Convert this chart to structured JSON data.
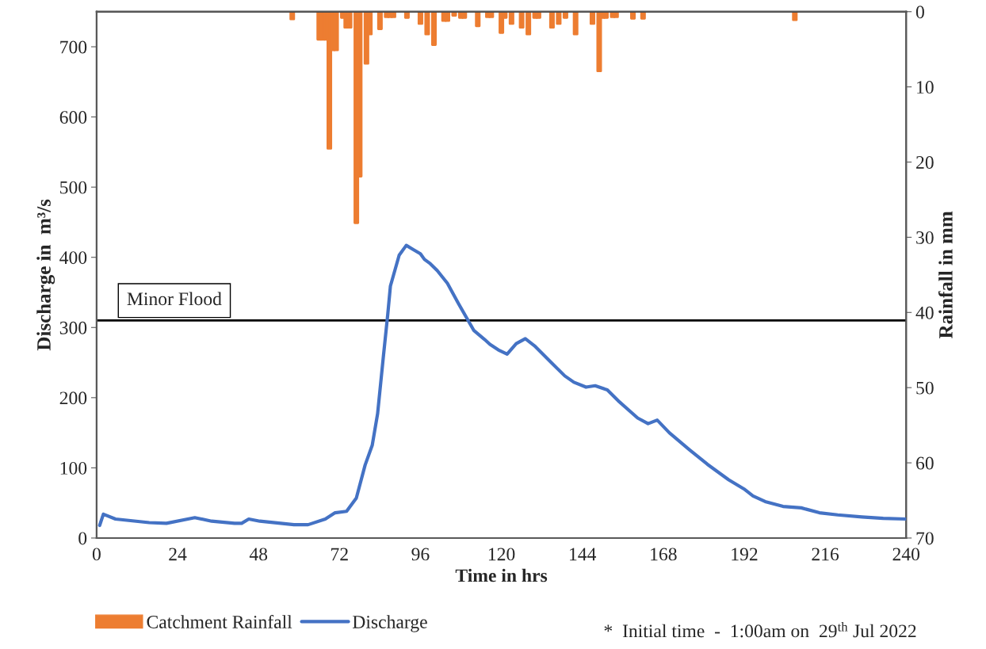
{
  "chart_data": {
    "type": "line",
    "xlabel": "Time in hrs",
    "ylabel": "Discharge in  m³/s",
    "y2label": "Rainfall in mm",
    "xlim": [
      0,
      240
    ],
    "xticks": [
      0,
      24,
      48,
      72,
      96,
      120,
      144,
      168,
      192,
      216,
      240
    ],
    "ylim": [
      0,
      750
    ],
    "yticks": [
      0,
      100,
      200,
      300,
      400,
      500,
      600,
      700
    ],
    "y2lim": [
      70,
      0
    ],
    "y2ticks": [
      0,
      10,
      20,
      30,
      40,
      50,
      60,
      70
    ],
    "grid": false,
    "legend": "bottom",
    "marker": "none",
    "line_style": "solid",
    "ref_lines": [
      {
        "axis": "y",
        "value": 310,
        "label": "Minor Flood",
        "color": "#000000"
      }
    ],
    "annotations": [
      "*  Initial time  -  1:00am on  29$^{th}$ Jul 2022"
    ],
    "series": [
      {
        "name": "Catchment Rainfall",
        "type": "bar",
        "axis": "y2",
        "color": "#ed7d31",
        "x": [
          58,
          66,
          67,
          68,
          69,
          70,
          71,
          73,
          74,
          75,
          77,
          78,
          80,
          81,
          84,
          86,
          87,
          88,
          92,
          96,
          98,
          100,
          103,
          104,
          106,
          108,
          109,
          113,
          116,
          117,
          120,
          121,
          123,
          126,
          128,
          130,
          131,
          135,
          137,
          139,
          142,
          147,
          149,
          150,
          151,
          153,
          154,
          159,
          162,
          207
        ],
        "values": [
          1.0,
          3.7,
          3.7,
          3.7,
          18.2,
          5.1,
          5.1,
          0.8,
          2.1,
          2.1,
          28.1,
          21.9,
          6.9,
          3.0,
          2.3,
          0.7,
          0.7,
          0.7,
          0.8,
          1.6,
          3.0,
          4.4,
          1.2,
          1.2,
          0.5,
          0.8,
          0.8,
          1.9,
          0.7,
          0.7,
          2.8,
          0.8,
          1.6,
          2.1,
          3.0,
          0.8,
          0.8,
          2.1,
          1.6,
          0.8,
          3.0,
          1.6,
          7.9,
          0.8,
          0.8,
          0.7,
          0.7,
          0.9,
          0.9,
          1.1
        ]
      },
      {
        "name": "Discharge",
        "axis": "y",
        "color": "#4472c4",
        "x": [
          0.9,
          2.0,
          5.6,
          15.6,
          20.7,
          29.1,
          34.1,
          40.9,
          43.0,
          45.1,
          48.4,
          58.5,
          62.7,
          67.8,
          70.7,
          74.1,
          77.0,
          79.6,
          81.7,
          83.3,
          85.0,
          86.3,
          87.1,
          89.7,
          91.8,
          93.9,
          96.0,
          97.2,
          98.9,
          101.0,
          104.0,
          107.3,
          111.8,
          115.0,
          116.6,
          119.1,
          121.7,
          124.4,
          127.1,
          129.8,
          135.2,
          138.8,
          141.5,
          145.1,
          147.8,
          151.4,
          155.0,
          160.4,
          163.5,
          166.2,
          169.8,
          175.7,
          181.1,
          187.4,
          191.9,
          194.6,
          198.2,
          203.5,
          208.9,
          214.3,
          219.7,
          226.9,
          233.2,
          240
        ],
        "values": [
          18,
          34,
          27,
          22,
          21,
          29,
          24,
          21,
          21,
          27,
          24,
          19,
          19,
          27,
          36,
          38,
          57,
          104,
          132,
          177,
          258,
          318,
          359,
          403,
          417,
          411,
          405,
          397,
          391,
          381,
          363,
          334,
          296,
          283,
          276,
          268,
          262,
          277,
          284,
          274,
          248,
          231,
          222,
          215,
          217,
          211,
          194,
          171,
          163,
          168,
          150,
          126,
          105,
          83,
          70,
          60,
          52,
          45,
          43,
          36,
          33,
          30,
          28,
          27
        ]
      }
    ]
  }
}
